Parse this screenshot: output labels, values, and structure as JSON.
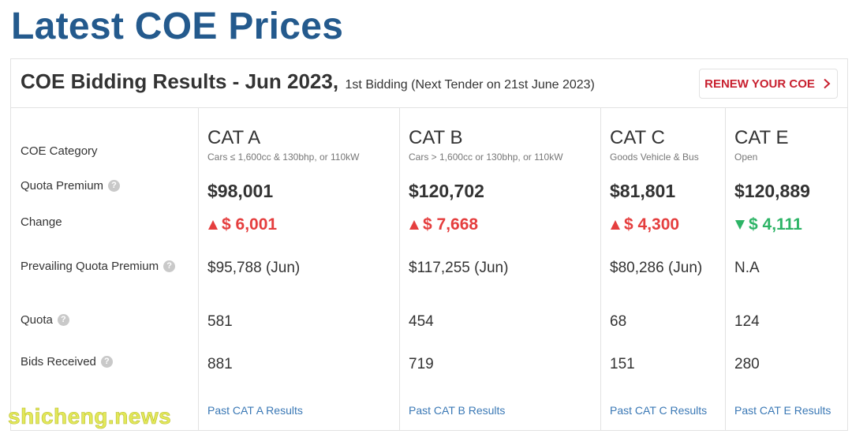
{
  "page": {
    "title": "Latest COE Prices"
  },
  "header": {
    "title": "COE Bidding Results - Jun 2023,",
    "subtitle": "1st Bidding (Next Tender on 21st June 2023)",
    "renew_label": "RENEW YOUR COE"
  },
  "labels": {
    "category": "COE Category",
    "quota_premium": "Quota Premium",
    "change": "Change",
    "prevailing": "Prevailing Quota Premium",
    "quota": "Quota",
    "bids": "Bids Received",
    "help_glyph": "?"
  },
  "categories": [
    {
      "name": "CAT A",
      "desc": "Cars ≤ 1,600cc & 130bhp, or 110kW",
      "premium": "$98,001",
      "change": "$ 6,001",
      "direction": "up",
      "prevailing": "$95,788 (Jun)",
      "quota": "581",
      "bids": "881",
      "link": "Past CAT A Results"
    },
    {
      "name": "CAT B",
      "desc": "Cars > 1,600cc or 130bhp, or 110kW",
      "premium": "$120,702",
      "change": "$ 7,668",
      "direction": "up",
      "prevailing": "$117,255 (Jun)",
      "quota": "454",
      "bids": "719",
      "link": "Past CAT B Results"
    },
    {
      "name": "CAT C",
      "desc": "Goods Vehicle & Bus",
      "premium": "$81,801",
      "change": "$ 4,300",
      "direction": "up",
      "prevailing": "$80,286 (Jun)",
      "quota": "68",
      "bids": "151",
      "link": "Past CAT C Results"
    },
    {
      "name": "CAT E",
      "desc": "Open",
      "premium": "$120,889",
      "change": "$ 4,111",
      "direction": "down",
      "prevailing": "N.A",
      "quota": "124",
      "bids": "280",
      "link": "Past CAT E Results"
    }
  ],
  "watermark": "shicheng.news",
  "colors": {
    "title_blue": "#245a8d",
    "up_red": "#e53e3e",
    "down_green": "#2db466",
    "renew_red": "#c8202f",
    "link_blue": "#3a78b5"
  }
}
